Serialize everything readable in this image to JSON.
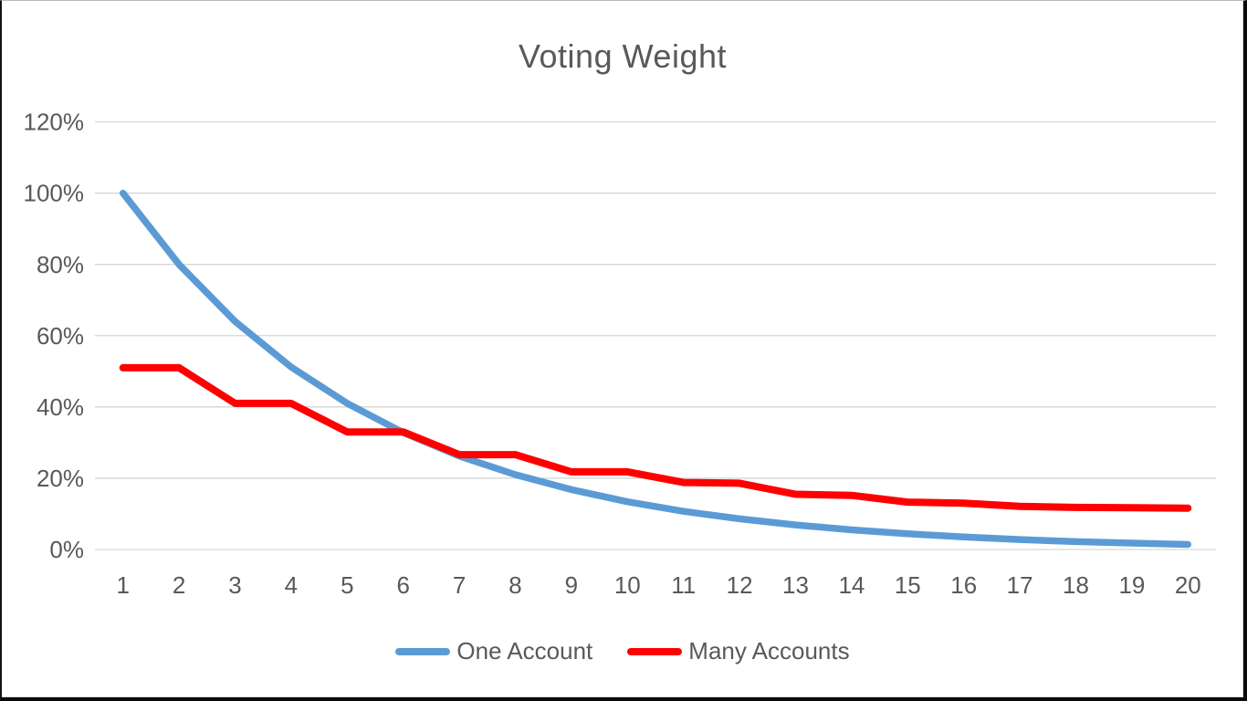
{
  "frame": {
    "background": "#ffffff",
    "border_color": "#0a0a0a"
  },
  "chart_data": {
    "type": "line",
    "title": "Voting Weight",
    "xlabel": "",
    "ylabel": "",
    "x": [
      1,
      2,
      3,
      4,
      5,
      6,
      7,
      8,
      9,
      10,
      11,
      12,
      13,
      14,
      15,
      16,
      17,
      18,
      19,
      20
    ],
    "x_tick_labels": [
      "1",
      "2",
      "3",
      "4",
      "5",
      "6",
      "7",
      "8",
      "9",
      "10",
      "11",
      "12",
      "13",
      "14",
      "15",
      "16",
      "17",
      "18",
      "19",
      "20"
    ],
    "y_ticks": [
      0,
      20,
      40,
      60,
      80,
      100,
      120
    ],
    "y_tick_labels": [
      "0%",
      "20%",
      "40%",
      "60%",
      "80%",
      "100%",
      "120%"
    ],
    "ylim": [
      0,
      120
    ],
    "grid": "horizontal",
    "gridline_color": "#d6d6d6",
    "text_color": "#595959",
    "legend_position": "bottom",
    "series": [
      {
        "name": "One Account",
        "color": "#5b9bd5",
        "stroke_width": 7.5,
        "values": [
          100,
          80,
          64,
          51.2,
          41,
          32.8,
          26.2,
          21,
          16.8,
          13.4,
          10.7,
          8.6,
          6.9,
          5.5,
          4.4,
          3.5,
          2.8,
          2.2,
          1.8,
          1.4
        ]
      },
      {
        "name": "Many Accounts",
        "color": "#ff0000",
        "stroke_width": 8,
        "values": [
          51,
          51,
          41,
          41,
          33,
          33,
          26.6,
          26.6,
          21.8,
          21.8,
          18.8,
          18.6,
          15.5,
          15.2,
          13.3,
          13.0,
          12.1,
          11.8,
          11.7,
          11.6
        ]
      }
    ]
  }
}
